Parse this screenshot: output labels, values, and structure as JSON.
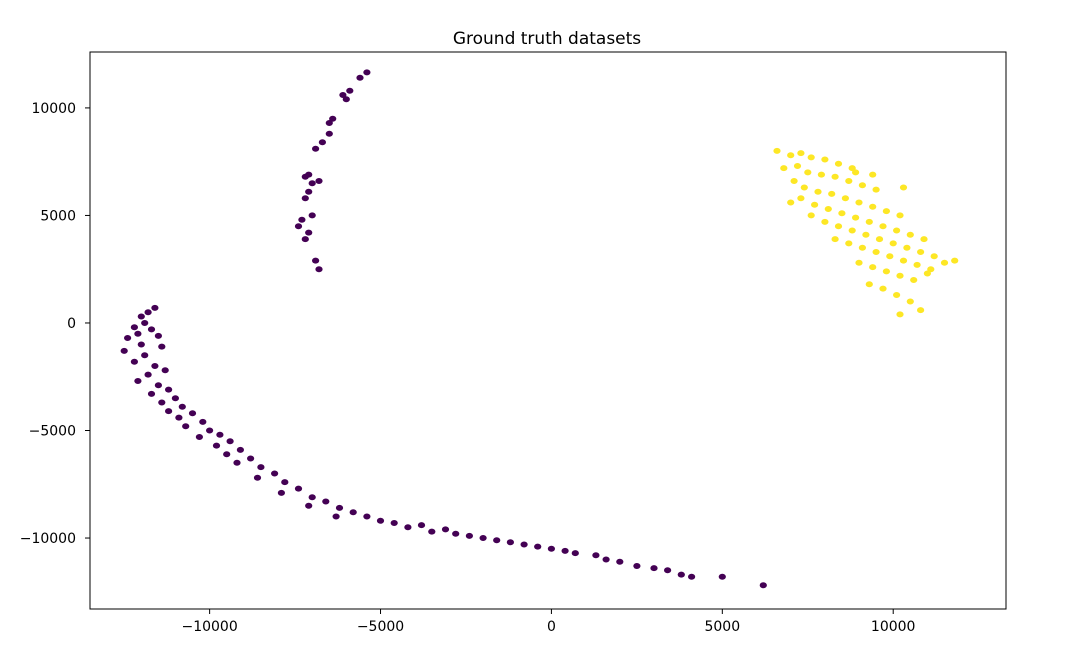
{
  "chart_data": {
    "type": "scatter",
    "title": "Ground truth datasets",
    "xlabel": "",
    "ylabel": "",
    "xlim": [
      -13500,
      13300
    ],
    "ylim": [
      -13300,
      12600
    ],
    "x_ticks": [
      -10000,
      -5000,
      0,
      5000,
      10000
    ],
    "x_tick_labels": [
      "−10000",
      "−5000",
      "0",
      "5000",
      "10000"
    ],
    "y_ticks": [
      -10000,
      -5000,
      0,
      5000,
      10000
    ],
    "y_tick_labels": [
      "−10000",
      "−5000",
      "0",
      "5000",
      "10000"
    ],
    "grid": false,
    "legend": "none",
    "colors": {
      "class_0": "#440154",
      "class_1": "#fde725"
    },
    "series": [
      {
        "class": 0,
        "color": "#440154",
        "points": [
          [
            -5400,
            11650
          ],
          [
            -5600,
            11400
          ],
          [
            -5900,
            10800
          ],
          [
            -6000,
            10400
          ],
          [
            -6100,
            10600
          ],
          [
            -6400,
            9500
          ],
          [
            -6500,
            9300
          ],
          [
            -6500,
            8800
          ],
          [
            -6700,
            8400
          ],
          [
            -6900,
            8100
          ],
          [
            -6800,
            6600
          ],
          [
            -7000,
            6500
          ],
          [
            -7100,
            6900
          ],
          [
            -7200,
            6800
          ],
          [
            -7100,
            6100
          ],
          [
            -7200,
            5800
          ],
          [
            -7000,
            5000
          ],
          [
            -7300,
            4800
          ],
          [
            -7400,
            4500
          ],
          [
            -7100,
            4200
          ],
          [
            -7200,
            3900
          ],
          [
            -6900,
            2900
          ],
          [
            -6800,
            2500
          ],
          [
            -11600,
            700
          ],
          [
            -11800,
            500
          ],
          [
            -12000,
            300
          ],
          [
            -11900,
            0
          ],
          [
            -12200,
            -200
          ],
          [
            -11700,
            -300
          ],
          [
            -12100,
            -500
          ],
          [
            -12400,
            -700
          ],
          [
            -11500,
            -600
          ],
          [
            -12000,
            -1000
          ],
          [
            -12500,
            -1300
          ],
          [
            -11400,
            -1100
          ],
          [
            -11900,
            -1500
          ],
          [
            -12200,
            -1800
          ],
          [
            -11600,
            -2000
          ],
          [
            -11300,
            -2200
          ],
          [
            -11800,
            -2400
          ],
          [
            -12100,
            -2700
          ],
          [
            -11500,
            -2900
          ],
          [
            -11200,
            -3100
          ],
          [
            -11700,
            -3300
          ],
          [
            -11000,
            -3500
          ],
          [
            -11400,
            -3700
          ],
          [
            -10800,
            -3900
          ],
          [
            -11200,
            -4100
          ],
          [
            -10500,
            -4200
          ],
          [
            -10900,
            -4400
          ],
          [
            -10200,
            -4600
          ],
          [
            -10700,
            -4800
          ],
          [
            -10000,
            -5000
          ],
          [
            -9700,
            -5200
          ],
          [
            -10300,
            -5300
          ],
          [
            -9400,
            -5500
          ],
          [
            -9800,
            -5700
          ],
          [
            -9100,
            -5900
          ],
          [
            -9500,
            -6100
          ],
          [
            -8800,
            -6300
          ],
          [
            -9200,
            -6500
          ],
          [
            -8500,
            -6700
          ],
          [
            -8100,
            -7000
          ],
          [
            -8600,
            -7200
          ],
          [
            -7800,
            -7400
          ],
          [
            -7400,
            -7700
          ],
          [
            -7900,
            -7900
          ],
          [
            -7000,
            -8100
          ],
          [
            -6600,
            -8300
          ],
          [
            -7100,
            -8500
          ],
          [
            -6200,
            -8600
          ],
          [
            -5800,
            -8800
          ],
          [
            -6300,
            -9000
          ],
          [
            -5400,
            -9000
          ],
          [
            -5000,
            -9200
          ],
          [
            -4600,
            -9300
          ],
          [
            -4200,
            -9500
          ],
          [
            -3800,
            -9400
          ],
          [
            -3500,
            -9700
          ],
          [
            -3100,
            -9600
          ],
          [
            -2800,
            -9800
          ],
          [
            -2400,
            -9900
          ],
          [
            -2000,
            -10000
          ],
          [
            -1600,
            -10100
          ],
          [
            -1200,
            -10200
          ],
          [
            -800,
            -10300
          ],
          [
            -400,
            -10400
          ],
          [
            0,
            -10500
          ],
          [
            400,
            -10600
          ],
          [
            700,
            -10700
          ],
          [
            1300,
            -10800
          ],
          [
            1600,
            -11000
          ],
          [
            2000,
            -11100
          ],
          [
            2500,
            -11300
          ],
          [
            3000,
            -11400
          ],
          [
            3400,
            -11500
          ],
          [
            3800,
            -11700
          ],
          [
            4100,
            -11800
          ],
          [
            5000,
            -11800
          ],
          [
            6200,
            -12200
          ]
        ]
      },
      {
        "class": 1,
        "color": "#fde725",
        "points": [
          [
            6600,
            8000
          ],
          [
            7000,
            7800
          ],
          [
            7300,
            7900
          ],
          [
            7600,
            7700
          ],
          [
            8000,
            7600
          ],
          [
            8400,
            7400
          ],
          [
            8800,
            7200
          ],
          [
            7200,
            7300
          ],
          [
            6800,
            7200
          ],
          [
            7500,
            7000
          ],
          [
            7900,
            6900
          ],
          [
            8300,
            6800
          ],
          [
            8700,
            6600
          ],
          [
            9100,
            6400
          ],
          [
            9500,
            6200
          ],
          [
            7100,
            6600
          ],
          [
            7400,
            6300
          ],
          [
            7800,
            6100
          ],
          [
            8200,
            6000
          ],
          [
            8600,
            5800
          ],
          [
            9000,
            5600
          ],
          [
            9400,
            5400
          ],
          [
            9800,
            5200
          ],
          [
            10200,
            5000
          ],
          [
            7300,
            5800
          ],
          [
            7700,
            5500
          ],
          [
            8100,
            5300
          ],
          [
            8500,
            5100
          ],
          [
            8900,
            4900
          ],
          [
            9300,
            4700
          ],
          [
            9700,
            4500
          ],
          [
            10100,
            4300
          ],
          [
            10500,
            4100
          ],
          [
            10900,
            3900
          ],
          [
            7600,
            5000
          ],
          [
            8000,
            4700
          ],
          [
            8400,
            4500
          ],
          [
            8800,
            4300
          ],
          [
            9200,
            4100
          ],
          [
            9600,
            3900
          ],
          [
            10000,
            3700
          ],
          [
            10400,
            3500
          ],
          [
            10800,
            3300
          ],
          [
            11200,
            3100
          ],
          [
            8300,
            3900
          ],
          [
            8700,
            3700
          ],
          [
            9100,
            3500
          ],
          [
            9500,
            3300
          ],
          [
            9900,
            3100
          ],
          [
            10300,
            2900
          ],
          [
            10700,
            2700
          ],
          [
            11100,
            2500
          ],
          [
            11500,
            2800
          ],
          [
            9000,
            2800
          ],
          [
            9400,
            2600
          ],
          [
            9800,
            2400
          ],
          [
            10200,
            2200
          ],
          [
            10600,
            2000
          ],
          [
            11000,
            2300
          ],
          [
            9300,
            1800
          ],
          [
            9700,
            1600
          ],
          [
            10100,
            1300
          ],
          [
            10500,
            1000
          ],
          [
            10800,
            600
          ],
          [
            10200,
            400
          ],
          [
            11800,
            2900
          ],
          [
            7000,
            5600
          ],
          [
            8900,
            7000
          ],
          [
            9400,
            6900
          ],
          [
            10300,
            6300
          ]
        ]
      }
    ]
  }
}
